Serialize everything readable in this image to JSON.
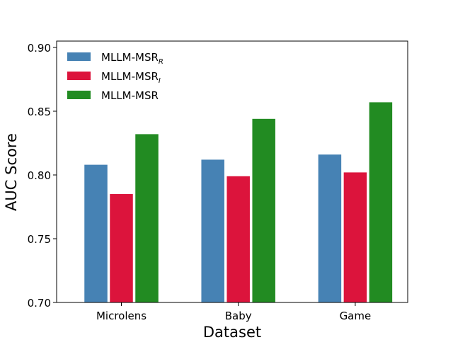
{
  "chart_data": {
    "type": "bar",
    "xlabel": "Dataset",
    "ylabel": "AUC Score",
    "ylim": [
      0.7,
      0.905
    ],
    "yticks": [
      "0.70",
      "0.75",
      "0.80",
      "0.85",
      "0.90"
    ],
    "categories": [
      "Microlens",
      "Baby",
      "Game"
    ],
    "grid": false,
    "legend_position": "top-left",
    "series": [
      {
        "name": "MLLM-MSR",
        "subscript": "R",
        "color": "#4682B4",
        "values": [
          0.808,
          0.812,
          0.816
        ]
      },
      {
        "name": "MLLM-MSR",
        "subscript": "I",
        "color": "#DC143C",
        "values": [
          0.785,
          0.799,
          0.802
        ]
      },
      {
        "name": "MLLM-MSR",
        "subscript": "",
        "color": "#228B22",
        "values": [
          0.832,
          0.844,
          0.857
        ]
      }
    ]
  }
}
